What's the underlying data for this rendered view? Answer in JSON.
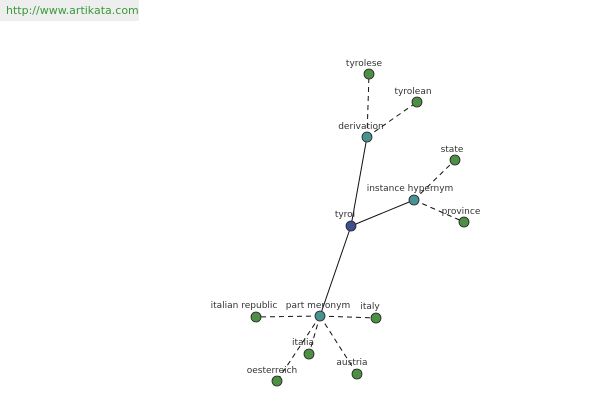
{
  "header": {
    "url": "http://www.artikata.com"
  },
  "nodes": [
    {
      "label": "tyrol"
    },
    {
      "label": "derivation"
    },
    {
      "label": "tyrolese"
    },
    {
      "label": "tyrolean"
    },
    {
      "label": "instance hypernym"
    },
    {
      "label": "state"
    },
    {
      "label": "province"
    },
    {
      "label": "part meronym"
    },
    {
      "label": "italian republic"
    },
    {
      "label": "italy"
    },
    {
      "label": "italia"
    },
    {
      "label": "austria"
    },
    {
      "label": "oesterreich"
    }
  ]
}
